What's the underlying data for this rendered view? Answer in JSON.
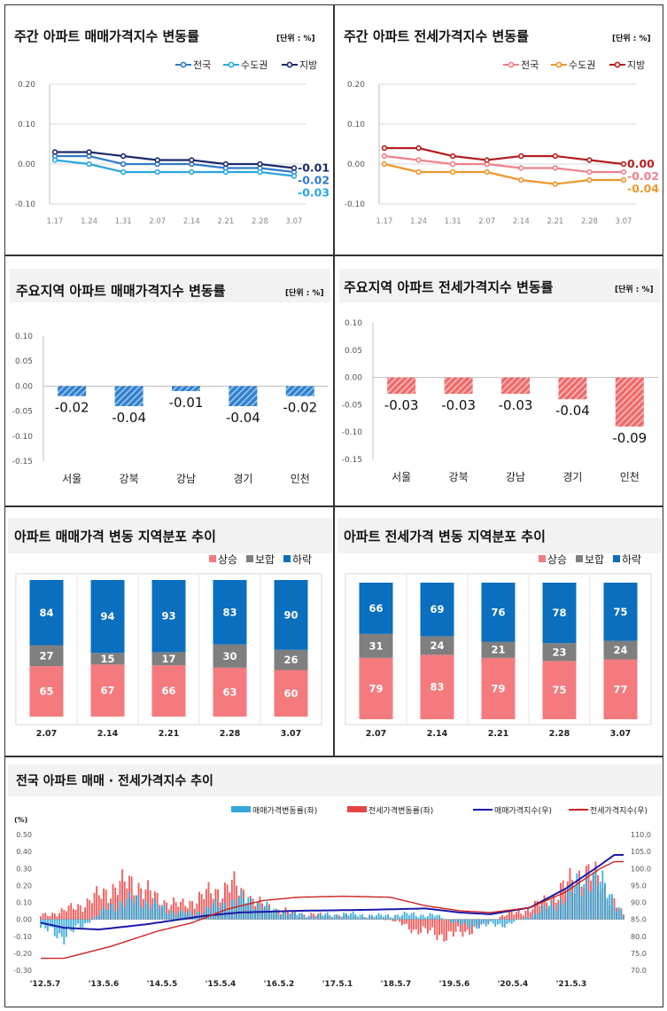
{
  "unit_label": "[단위 : %]",
  "chart_data": [
    {
      "id": "weekly-sale",
      "type": "line",
      "title": "주간 아파트 매매가격지수 변동률",
      "unit": "[단위 : %]",
      "categories": [
        "1.17",
        "1.24",
        "1.31",
        "2.07",
        "2.14",
        "2.21",
        "2.28",
        "3.07"
      ],
      "ylim": [
        -0.1,
        0.2
      ],
      "yticks": [
        "0.20",
        "0.10",
        "0.00",
        "-0.10"
      ],
      "series": [
        {
          "name": "전국",
          "color": "#2f7bc8",
          "values": [
            0.02,
            0.02,
            0.0,
            0.0,
            0.0,
            -0.01,
            -0.01,
            -0.02
          ],
          "end_label": "-0.02"
        },
        {
          "name": "수도권",
          "color": "#2aa7e0",
          "values": [
            0.01,
            0.0,
            -0.02,
            -0.02,
            -0.02,
            -0.02,
            -0.02,
            -0.03
          ],
          "end_label": "-0.03"
        },
        {
          "name": "지방",
          "color": "#1b2a6b",
          "values": [
            0.03,
            0.03,
            0.02,
            0.01,
            0.01,
            0.0,
            0.0,
            -0.01
          ],
          "end_label": "-0.01"
        }
      ]
    },
    {
      "id": "weekly-jeonse",
      "type": "line",
      "title": "주간 아파트 전세가격지수 변동률",
      "unit": "[단위 : %]",
      "categories": [
        "1.17",
        "1.24",
        "1.31",
        "2.07",
        "2.14",
        "2.21",
        "2.28",
        "3.07"
      ],
      "ylim": [
        -0.1,
        0.2
      ],
      "yticks": [
        "0.20",
        "0.10",
        "0.00",
        "-0.10"
      ],
      "series": [
        {
          "name": "전국",
          "color": "#f0808a",
          "values": [
            0.02,
            0.01,
            0.0,
            0.0,
            -0.01,
            -0.01,
            -0.02,
            -0.02
          ],
          "end_label": "-0.02"
        },
        {
          "name": "수도권",
          "color": "#f0962e",
          "values": [
            0.0,
            -0.02,
            -0.02,
            -0.02,
            -0.04,
            -0.05,
            -0.04,
            -0.04
          ],
          "end_label": "-0.04"
        },
        {
          "name": "지방",
          "color": "#b51e1e",
          "values": [
            0.04,
            0.04,
            0.02,
            0.01,
            0.02,
            0.02,
            0.01,
            0.0
          ],
          "end_label": "0.00"
        }
      ]
    },
    {
      "id": "region-sale",
      "type": "bar",
      "title": "주요지역 아파트 매매가격지수 변동률",
      "unit": "[단위 : %]",
      "categories": [
        "서울",
        "강북",
        "강남",
        "경기",
        "인천"
      ],
      "values": [
        -0.02,
        -0.04,
        -0.01,
        -0.04,
        -0.02
      ],
      "labels": [
        "-0.02",
        "-0.04",
        "-0.01",
        "-0.04",
        "-0.02"
      ],
      "ylim": [
        -0.15,
        0.1
      ],
      "yticks": [
        "0.10",
        "0.05",
        "0.00",
        "-0.05",
        "-0.10",
        "-0.15"
      ],
      "color": "#2f80d0"
    },
    {
      "id": "region-jeonse",
      "type": "bar",
      "title": "주요지역 아파트 전세가격지수 변동률",
      "unit": "[단위 : %]",
      "categories": [
        "서울",
        "강북",
        "강남",
        "경기",
        "인천"
      ],
      "values": [
        -0.03,
        -0.03,
        -0.03,
        -0.04,
        -0.09
      ],
      "labels": [
        "-0.03",
        "-0.03",
        "-0.03",
        "-0.04",
        "-0.09"
      ],
      "ylim": [
        -0.15,
        0.1
      ],
      "yticks": [
        "0.10",
        "0.05",
        "0.00",
        "-0.05",
        "-0.10",
        "-0.15"
      ],
      "color": "#ee6b6b"
    },
    {
      "id": "dist-sale",
      "type": "bar",
      "stacked": true,
      "title": "아파트 매매가격 변동 지역분포 추이",
      "categories": [
        "2.07",
        "2.14",
        "2.21",
        "2.28",
        "3.07"
      ],
      "series": [
        {
          "name": "상승",
          "color": "#f47a7e",
          "values": [
            65,
            67,
            66,
            63,
            60
          ]
        },
        {
          "name": "보합",
          "color": "#7f7f7f",
          "values": [
            27,
            15,
            17,
            30,
            26
          ]
        },
        {
          "name": "하락",
          "color": "#0a6fbf",
          "values": [
            84,
            94,
            93,
            83,
            90
          ]
        }
      ]
    },
    {
      "id": "dist-jeonse",
      "type": "bar",
      "stacked": true,
      "title": "아파트 전세가격 변동 지역분포 추이",
      "categories": [
        "2.07",
        "2.14",
        "2.21",
        "2.28",
        "3.07"
      ],
      "series": [
        {
          "name": "상승",
          "color": "#f47a7e",
          "values": [
            79,
            83,
            79,
            75,
            77
          ]
        },
        {
          "name": "보합",
          "color": "#7f7f7f",
          "values": [
            31,
            24,
            21,
            23,
            24
          ]
        },
        {
          "name": "하락",
          "color": "#0a6fbf",
          "values": [
            66,
            69,
            76,
            78,
            75
          ]
        }
      ]
    },
    {
      "id": "long-term",
      "type": "bar",
      "title": "전국 아파트 매매 · 전세가격지수 추이",
      "ylabel": "(%)",
      "ylim": [
        -0.3,
        0.5
      ],
      "yticks": [
        "0.50",
        "0.40",
        "0.30",
        "0.20",
        "0.10",
        "0.00",
        "-0.10",
        "-0.20",
        "-0.30"
      ],
      "y2lim": [
        70.0,
        110.0
      ],
      "y2ticks": [
        "110.0",
        "105.0",
        "100.0",
        "95.0",
        "90.0",
        "85.0",
        "80.0",
        "75.0",
        "70.0"
      ],
      "x_labels": [
        "'12.5.7",
        "'13.5.6",
        "'14.5.5",
        "'15.5.4",
        "'16.5.2",
        "'17.5.1",
        "'18.5.7",
        "'19.5.6",
        "'20.5.4",
        "'21.5.3"
      ],
      "series": [
        {
          "name": "매매가격변동률(좌)",
          "color": "#33a8d8",
          "kind": "bar",
          "axis": "left",
          "keyframes": [
            [
              0,
              -0.05
            ],
            [
              10,
              -0.1
            ],
            [
              20,
              -0.02
            ],
            [
              30,
              0.08
            ],
            [
              42,
              0.12
            ],
            [
              55,
              0.05
            ],
            [
              65,
              0.03
            ],
            [
              75,
              0.08
            ],
            [
              88,
              0.12
            ],
            [
              100,
              0.05
            ],
            [
              115,
              0.02
            ],
            [
              130,
              0.03
            ],
            [
              145,
              0.02
            ],
            [
              160,
              0.03
            ],
            [
              170,
              0.02
            ],
            [
              182,
              -0.04
            ],
            [
              200,
              -0.03
            ],
            [
              210,
              0.02
            ],
            [
              222,
              0.1
            ],
            [
              235,
              0.25
            ],
            [
              243,
              0.18
            ],
            [
              250,
              0.02
            ]
          ]
        },
        {
          "name": "전세가격변동률(좌)",
          "color": "#e64545",
          "kind": "bar",
          "axis": "left",
          "keyframes": [
            [
              0,
              0.02
            ],
            [
              10,
              0.05
            ],
            [
              20,
              0.1
            ],
            [
              30,
              0.18
            ],
            [
              40,
              0.22
            ],
            [
              50,
              0.12
            ],
            [
              60,
              0.08
            ],
            [
              72,
              0.15
            ],
            [
              82,
              0.2
            ],
            [
              95,
              0.08
            ],
            [
              110,
              0.03
            ],
            [
              125,
              0.02
            ],
            [
              140,
              0.01
            ],
            [
              150,
              0.0
            ],
            [
              160,
              -0.06
            ],
            [
              175,
              -0.1
            ],
            [
              185,
              -0.06
            ],
            [
              198,
              0.02
            ],
            [
              210,
              0.06
            ],
            [
              222,
              0.15
            ],
            [
              232,
              0.28
            ],
            [
              240,
              0.22
            ],
            [
              246,
              0.1
            ],
            [
              250,
              0.02
            ]
          ]
        },
        {
          "name": "매매가격지수(우)",
          "color": "#1a1aa8",
          "kind": "line",
          "axis": "right",
          "keyframes": [
            [
              0,
              84.0
            ],
            [
              10,
              82.5
            ],
            [
              25,
              82.0
            ],
            [
              45,
              83.5
            ],
            [
              70,
              86.0
            ],
            [
              85,
              87.0
            ],
            [
              110,
              87.5
            ],
            [
              140,
              87.8
            ],
            [
              165,
              88.2
            ],
            [
              180,
              87.0
            ],
            [
              193,
              86.5
            ],
            [
              210,
              88.5
            ],
            [
              225,
              94.0
            ],
            [
              240,
              101.0
            ],
            [
              246,
              104.0
            ],
            [
              250,
              104.0
            ]
          ]
        },
        {
          "name": "전세가격지수(우)",
          "color": "#cc2222",
          "kind": "line",
          "axis": "right",
          "keyframes": [
            [
              0,
              73.5
            ],
            [
              10,
              73.5
            ],
            [
              30,
              77.0
            ],
            [
              50,
              81.5
            ],
            [
              65,
              84.0
            ],
            [
              80,
              88.0
            ],
            [
              95,
              90.5
            ],
            [
              110,
              91.5
            ],
            [
              130,
              91.8
            ],
            [
              150,
              91.5
            ],
            [
              165,
              89.0
            ],
            [
              180,
              87.5
            ],
            [
              193,
              87.0
            ],
            [
              210,
              88.5
            ],
            [
              225,
              93.0
            ],
            [
              240,
              100.0
            ],
            [
              246,
              102.0
            ],
            [
              250,
              102.0
            ]
          ]
        }
      ]
    }
  ]
}
